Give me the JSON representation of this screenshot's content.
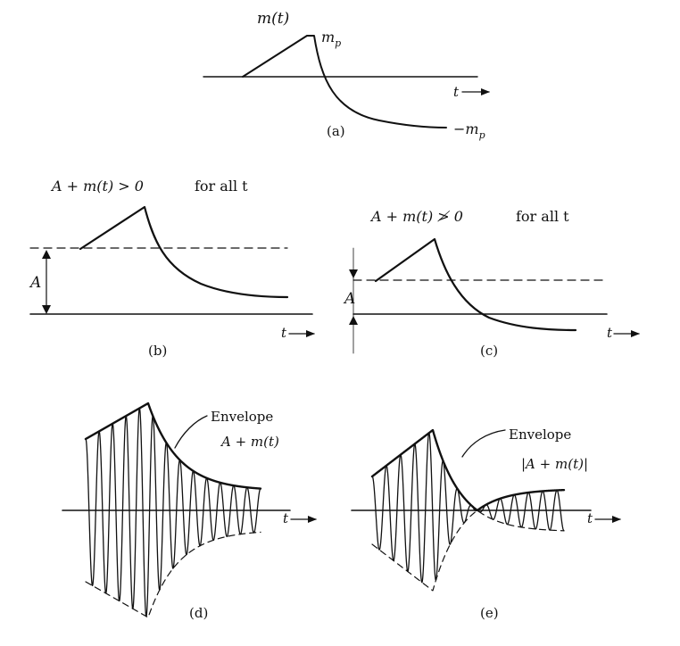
{
  "panel_a": {
    "ylabel": "m(t)",
    "peak_label": "m",
    "peak_sub": "p",
    "neg_label": "−m",
    "neg_sub": "p",
    "t_label": "t",
    "caption": "(a)"
  },
  "panel_b": {
    "condition": "A + m(t) > 0",
    "condition_suffix": "for all t",
    "a_label": "A",
    "t_label": "t",
    "caption": "(b)"
  },
  "panel_c": {
    "condition": "A + m(t) ≯ 0",
    "condition_suffix": "for all t",
    "a_label": "A",
    "t_label": "t",
    "caption": "(c)"
  },
  "panel_d": {
    "envelope_label": "Envelope",
    "envelope_expr": "A + m(t)",
    "t_label": "t",
    "caption": "(d)"
  },
  "panel_e": {
    "envelope_label": "Envelope",
    "envelope_expr": "|A + m(t)|",
    "t_label": "t",
    "caption": "(e)"
  },
  "colors": {
    "ink": "#111111",
    "background": "#ffffff"
  }
}
